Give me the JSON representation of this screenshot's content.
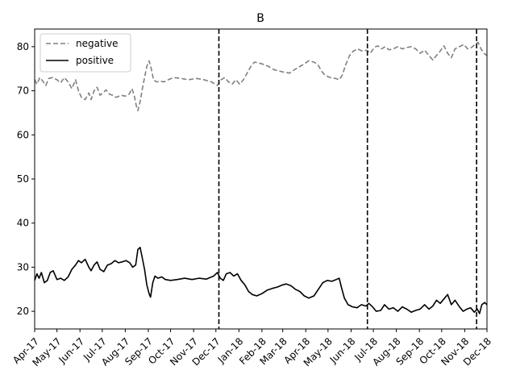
{
  "chart_data": {
    "type": "line",
    "title": "B",
    "xlabel": "",
    "ylabel": "",
    "ylim": [
      16,
      84
    ],
    "yticks": [
      20,
      30,
      40,
      50,
      60,
      70,
      80
    ],
    "xlim": [
      "2017-04-01",
      "2018-12-01"
    ],
    "xticks": [
      {
        "date": "2017-04-01",
        "label": "Apr-17"
      },
      {
        "date": "2017-05-01",
        "label": "May-17"
      },
      {
        "date": "2017-06-01",
        "label": "Jun-17"
      },
      {
        "date": "2017-07-01",
        "label": "Jul-17"
      },
      {
        "date": "2017-08-01",
        "label": "Aug-17"
      },
      {
        "date": "2017-09-01",
        "label": "Sep-17"
      },
      {
        "date": "2017-10-01",
        "label": "Oct-17"
      },
      {
        "date": "2017-11-01",
        "label": "Nov-17"
      },
      {
        "date": "2017-12-01",
        "label": "Dec-17"
      },
      {
        "date": "2018-01-01",
        "label": "Jan-18"
      },
      {
        "date": "2018-02-01",
        "label": "Feb-18"
      },
      {
        "date": "2018-03-01",
        "label": "Mar-18"
      },
      {
        "date": "2018-04-01",
        "label": "Apr-18"
      },
      {
        "date": "2018-05-01",
        "label": "May-18"
      },
      {
        "date": "2018-06-01",
        "label": "Jun-18"
      },
      {
        "date": "2018-07-01",
        "label": "Jul-18"
      },
      {
        "date": "2018-08-01",
        "label": "Aug-18"
      },
      {
        "date": "2018-09-01",
        "label": "Sep-18"
      },
      {
        "date": "2018-10-01",
        "label": "Oct-18"
      },
      {
        "date": "2018-11-01",
        "label": "Nov-18"
      },
      {
        "date": "2018-12-01",
        "label": "Dec-18"
      }
    ],
    "vlines": [
      "2017-12-05",
      "2018-06-23",
      "2018-11-17"
    ],
    "legend_position": "top-left",
    "grid": false,
    "series": [
      {
        "name": "negative",
        "color": "#808080",
        "style": "dashed",
        "points": [
          [
            "2017-04-01",
            72.5
          ],
          [
            "2017-04-04",
            71.5
          ],
          [
            "2017-04-08",
            73.0
          ],
          [
            "2017-04-12",
            72.2
          ],
          [
            "2017-04-16",
            71.2
          ],
          [
            "2017-04-20",
            72.8
          ],
          [
            "2017-04-25",
            73.0
          ],
          [
            "2017-05-01",
            72.5
          ],
          [
            "2017-05-06",
            71.8
          ],
          [
            "2017-05-11",
            73.0
          ],
          [
            "2017-05-16",
            72.0
          ],
          [
            "2017-05-21",
            70.5
          ],
          [
            "2017-05-26",
            72.5
          ],
          [
            "2017-05-30",
            70.0
          ],
          [
            "2017-06-03",
            68.5
          ],
          [
            "2017-06-08",
            68.0
          ],
          [
            "2017-06-13",
            69.5
          ],
          [
            "2017-06-16",
            68.0
          ],
          [
            "2017-06-20",
            70.0
          ],
          [
            "2017-06-24",
            70.8
          ],
          [
            "2017-06-28",
            69.0
          ],
          [
            "2017-07-02",
            69.5
          ],
          [
            "2017-07-06",
            70.2
          ],
          [
            "2017-07-11",
            69.2
          ],
          [
            "2017-07-15",
            69.0
          ],
          [
            "2017-07-20",
            68.5
          ],
          [
            "2017-07-26",
            69.0
          ],
          [
            "2017-08-01",
            68.8
          ],
          [
            "2017-08-06",
            69.2
          ],
          [
            "2017-08-10",
            70.5
          ],
          [
            "2017-08-13",
            69.0
          ],
          [
            "2017-08-16",
            66.5
          ],
          [
            "2017-08-18",
            65.5
          ],
          [
            "2017-08-21",
            67.5
          ],
          [
            "2017-08-24",
            70.5
          ],
          [
            "2017-08-27",
            73.0
          ],
          [
            "2017-08-30",
            75.5
          ],
          [
            "2017-09-02",
            76.8
          ],
          [
            "2017-09-05",
            75.0
          ],
          [
            "2017-09-08",
            72.5
          ],
          [
            "2017-09-12",
            72.0
          ],
          [
            "2017-09-17",
            72.2
          ],
          [
            "2017-09-22",
            72.0
          ],
          [
            "2017-09-28",
            72.5
          ],
          [
            "2017-10-05",
            73.0
          ],
          [
            "2017-10-15",
            72.8
          ],
          [
            "2017-10-25",
            72.5
          ],
          [
            "2017-11-05",
            72.8
          ],
          [
            "2017-11-15",
            72.5
          ],
          [
            "2017-11-25",
            72.0
          ],
          [
            "2017-12-03",
            71.2
          ],
          [
            "2017-12-08",
            72.5
          ],
          [
            "2017-12-13",
            73.0
          ],
          [
            "2017-12-18",
            72.0
          ],
          [
            "2017-12-23",
            71.5
          ],
          [
            "2017-12-28",
            72.5
          ],
          [
            "2018-01-02",
            71.5
          ],
          [
            "2018-01-07",
            72.5
          ],
          [
            "2018-01-12",
            74.0
          ],
          [
            "2018-01-17",
            75.5
          ],
          [
            "2018-01-22",
            76.5
          ],
          [
            "2018-01-28",
            76.3
          ],
          [
            "2018-02-03",
            76.0
          ],
          [
            "2018-02-10",
            75.5
          ],
          [
            "2018-02-17",
            74.8
          ],
          [
            "2018-02-24",
            74.5
          ],
          [
            "2018-03-03",
            74.2
          ],
          [
            "2018-03-10",
            74.0
          ],
          [
            "2018-03-17",
            74.8
          ],
          [
            "2018-03-24",
            75.5
          ],
          [
            "2018-03-31",
            76.2
          ],
          [
            "2018-04-05",
            76.8
          ],
          [
            "2018-04-12",
            76.5
          ],
          [
            "2018-04-17",
            76.0
          ],
          [
            "2018-04-22",
            74.5
          ],
          [
            "2018-04-27",
            73.5
          ],
          [
            "2018-05-04",
            73.0
          ],
          [
            "2018-05-11",
            72.8
          ],
          [
            "2018-05-16",
            72.5
          ],
          [
            "2018-05-20",
            73.5
          ],
          [
            "2018-05-25",
            76.0
          ],
          [
            "2018-05-30",
            78.0
          ],
          [
            "2018-06-04",
            79.0
          ],
          [
            "2018-06-10",
            79.5
          ],
          [
            "2018-06-16",
            79.0
          ],
          [
            "2018-06-22",
            79.2
          ],
          [
            "2018-06-27",
            78.5
          ],
          [
            "2018-07-02",
            79.8
          ],
          [
            "2018-07-07",
            80.2
          ],
          [
            "2018-07-12",
            79.5
          ],
          [
            "2018-07-17",
            80.0
          ],
          [
            "2018-07-22",
            79.3
          ],
          [
            "2018-07-28",
            79.5
          ],
          [
            "2018-08-03",
            80.0
          ],
          [
            "2018-08-09",
            79.5
          ],
          [
            "2018-08-15",
            79.8
          ],
          [
            "2018-08-21",
            80.0
          ],
          [
            "2018-08-27",
            79.5
          ],
          [
            "2018-09-02",
            78.5
          ],
          [
            "2018-09-08",
            79.2
          ],
          [
            "2018-09-14",
            78.0
          ],
          [
            "2018-09-19",
            77.0
          ],
          [
            "2018-09-24",
            78.0
          ],
          [
            "2018-09-29",
            79.0
          ],
          [
            "2018-10-04",
            80.2
          ],
          [
            "2018-10-09",
            78.5
          ],
          [
            "2018-10-14",
            77.5
          ],
          [
            "2018-10-19",
            79.5
          ],
          [
            "2018-10-25",
            80.0
          ],
          [
            "2018-10-31",
            80.5
          ],
          [
            "2018-11-05",
            79.5
          ],
          [
            "2018-11-10",
            79.8
          ],
          [
            "2018-11-15",
            80.5
          ],
          [
            "2018-11-19",
            81.0
          ],
          [
            "2018-11-23",
            79.5
          ],
          [
            "2018-11-27",
            78.5
          ],
          [
            "2018-12-01",
            78.0
          ]
        ]
      },
      {
        "name": "positive",
        "color": "#000000",
        "style": "solid",
        "points": [
          [
            "2017-04-01",
            27.0
          ],
          [
            "2017-04-04",
            28.5
          ],
          [
            "2017-04-07",
            27.5
          ],
          [
            "2017-04-10",
            28.8
          ],
          [
            "2017-04-14",
            26.5
          ],
          [
            "2017-04-18",
            27.0
          ],
          [
            "2017-04-22",
            28.8
          ],
          [
            "2017-04-26",
            29.2
          ],
          [
            "2017-05-01",
            27.2
          ],
          [
            "2017-05-06",
            27.5
          ],
          [
            "2017-05-11",
            27.0
          ],
          [
            "2017-05-16",
            27.8
          ],
          [
            "2017-05-21",
            29.5
          ],
          [
            "2017-05-26",
            30.5
          ],
          [
            "2017-05-30",
            31.5
          ],
          [
            "2017-06-03",
            31.0
          ],
          [
            "2017-06-08",
            31.8
          ],
          [
            "2017-06-13",
            30.0
          ],
          [
            "2017-06-16",
            29.2
          ],
          [
            "2017-06-20",
            30.5
          ],
          [
            "2017-06-24",
            31.2
          ],
          [
            "2017-06-28",
            29.5
          ],
          [
            "2017-07-03",
            29.0
          ],
          [
            "2017-07-08",
            30.5
          ],
          [
            "2017-07-13",
            30.8
          ],
          [
            "2017-07-18",
            31.5
          ],
          [
            "2017-07-23",
            31.0
          ],
          [
            "2017-07-28",
            31.2
          ],
          [
            "2017-08-02",
            31.5
          ],
          [
            "2017-08-07",
            31.0
          ],
          [
            "2017-08-11",
            30.0
          ],
          [
            "2017-08-15",
            30.5
          ],
          [
            "2017-08-18",
            34.0
          ],
          [
            "2017-08-21",
            34.5
          ],
          [
            "2017-08-24",
            32.0
          ],
          [
            "2017-08-27",
            29.5
          ],
          [
            "2017-08-30",
            26.0
          ],
          [
            "2017-09-02",
            24.0
          ],
          [
            "2017-09-04",
            23.2
          ],
          [
            "2017-09-07",
            26.5
          ],
          [
            "2017-09-10",
            28.0
          ],
          [
            "2017-09-14",
            27.5
          ],
          [
            "2017-09-19",
            27.8
          ],
          [
            "2017-09-24",
            27.2
          ],
          [
            "2017-10-01",
            27.0
          ],
          [
            "2017-10-10",
            27.2
          ],
          [
            "2017-10-20",
            27.5
          ],
          [
            "2017-10-30",
            27.2
          ],
          [
            "2017-11-08",
            27.5
          ],
          [
            "2017-11-18",
            27.3
          ],
          [
            "2017-11-28",
            28.0
          ],
          [
            "2017-12-03",
            28.8
          ],
          [
            "2017-12-07",
            27.5
          ],
          [
            "2017-12-11",
            27.0
          ],
          [
            "2017-12-15",
            28.5
          ],
          [
            "2017-12-20",
            28.8
          ],
          [
            "2017-12-25",
            28.0
          ],
          [
            "2017-12-30",
            28.5
          ],
          [
            "2018-01-04",
            27.0
          ],
          [
            "2018-01-09",
            26.0
          ],
          [
            "2018-01-14",
            24.5
          ],
          [
            "2018-01-19",
            23.8
          ],
          [
            "2018-01-25",
            23.5
          ],
          [
            "2018-02-01",
            24.0
          ],
          [
            "2018-02-08",
            24.8
          ],
          [
            "2018-02-15",
            25.2
          ],
          [
            "2018-02-22",
            25.5
          ],
          [
            "2018-03-01",
            26.0
          ],
          [
            "2018-03-06",
            26.2
          ],
          [
            "2018-03-12",
            25.8
          ],
          [
            "2018-03-18",
            25.0
          ],
          [
            "2018-03-24",
            24.5
          ],
          [
            "2018-03-30",
            23.5
          ],
          [
            "2018-04-05",
            23.0
          ],
          [
            "2018-04-12",
            23.5
          ],
          [
            "2018-04-18",
            25.0
          ],
          [
            "2018-04-24",
            26.5
          ],
          [
            "2018-04-30",
            27.0
          ],
          [
            "2018-05-06",
            26.8
          ],
          [
            "2018-05-12",
            27.2
          ],
          [
            "2018-05-16",
            27.5
          ],
          [
            "2018-05-19",
            25.5
          ],
          [
            "2018-05-23",
            23.0
          ],
          [
            "2018-05-28",
            21.5
          ],
          [
            "2018-06-03",
            21.0
          ],
          [
            "2018-06-09",
            20.8
          ],
          [
            "2018-06-15",
            21.5
          ],
          [
            "2018-06-21",
            21.2
          ],
          [
            "2018-06-25",
            21.8
          ],
          [
            "2018-06-30",
            21.0
          ],
          [
            "2018-07-05",
            20.0
          ],
          [
            "2018-07-11",
            20.2
          ],
          [
            "2018-07-16",
            21.5
          ],
          [
            "2018-07-22",
            20.5
          ],
          [
            "2018-07-28",
            20.8
          ],
          [
            "2018-08-03",
            20.0
          ],
          [
            "2018-08-09",
            21.0
          ],
          [
            "2018-08-15",
            20.5
          ],
          [
            "2018-08-21",
            19.8
          ],
          [
            "2018-08-27",
            20.2
          ],
          [
            "2018-09-02",
            20.5
          ],
          [
            "2018-09-08",
            21.5
          ],
          [
            "2018-09-14",
            20.5
          ],
          [
            "2018-09-19",
            21.2
          ],
          [
            "2018-09-24",
            22.5
          ],
          [
            "2018-09-29",
            21.8
          ],
          [
            "2018-10-04",
            22.8
          ],
          [
            "2018-10-09",
            23.8
          ],
          [
            "2018-10-14",
            21.5
          ],
          [
            "2018-10-19",
            22.5
          ],
          [
            "2018-10-25",
            21.0
          ],
          [
            "2018-10-30",
            20.0
          ],
          [
            "2018-11-04",
            20.5
          ],
          [
            "2018-11-09",
            20.8
          ],
          [
            "2018-11-14",
            19.8
          ],
          [
            "2018-11-18",
            20.5
          ],
          [
            "2018-11-21",
            19.5
          ],
          [
            "2018-11-24",
            21.5
          ],
          [
            "2018-11-28",
            22.0
          ],
          [
            "2018-12-01",
            21.5
          ]
        ]
      }
    ]
  }
}
